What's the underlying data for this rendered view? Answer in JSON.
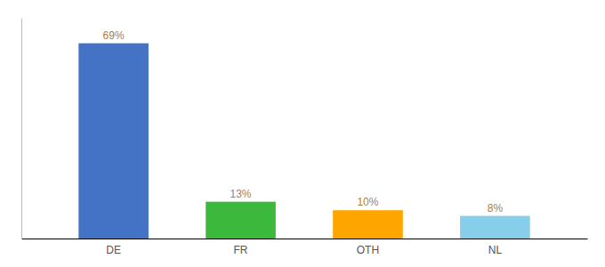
{
  "chart_data": {
    "type": "bar",
    "categories": [
      "DE",
      "FR",
      "OTH",
      "NL"
    ],
    "values": [
      69,
      13,
      10,
      8
    ],
    "value_labels": [
      "69%",
      "13%",
      "10%",
      "8%"
    ],
    "colors": [
      "#4472C4",
      "#3CB83C",
      "#FFA500",
      "#87CEEB"
    ],
    "ylim": [
      0,
      78
    ],
    "grid": false,
    "data_labels": true,
    "tick_labels": "x"
  }
}
